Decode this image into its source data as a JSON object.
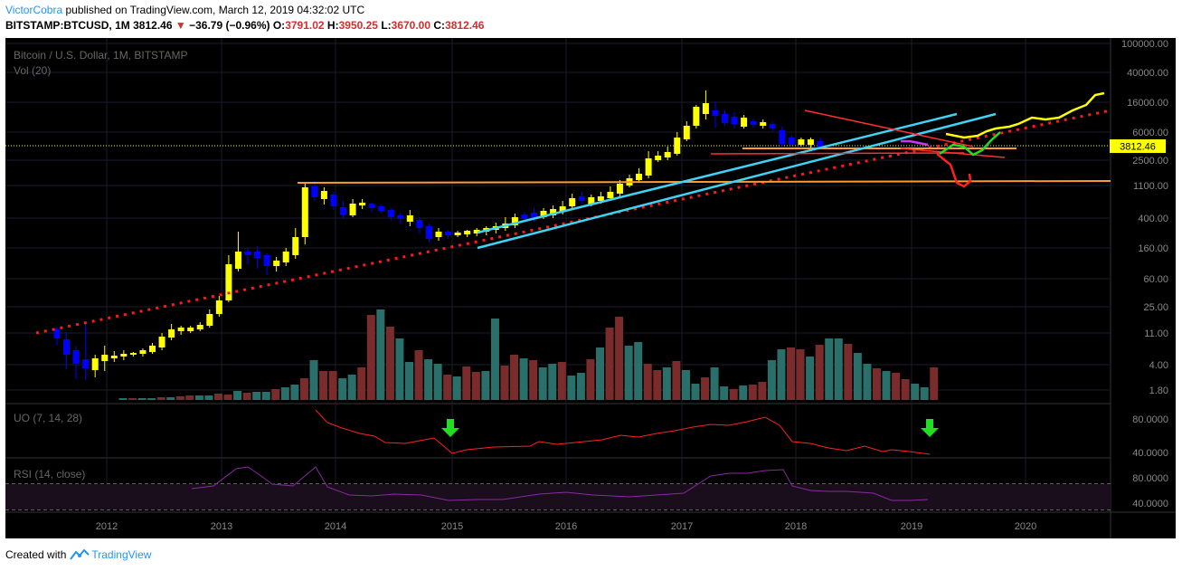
{
  "header": {
    "author": "VictorCobra",
    "published_text": "published on TradingView.com, March 12, 2019 04:32:02 UTC",
    "symbol": "BITSTAMP:BTCUSD, 1M",
    "last": "3812.46",
    "change": "−36.79 (−0.96%)",
    "o_label": "O:",
    "o_value": "3791.02",
    "h_label": "H:",
    "h_value": "3950.25",
    "l_label": "L:",
    "l_value": "3670.00",
    "c_label": "C:",
    "c_value": "3812.46"
  },
  "chart": {
    "pane_title": "Bitcoin / U.S. Dollar, 1M, BITSTAMP",
    "volume_label": "Vol (20)",
    "uo_label": "UO (7, 14, 28)",
    "rsi_label": "RSI (14, close)",
    "price_badge": "3812.46",
    "price_axis_labels": [
      "100000.00",
      "40000.00",
      "16000.00",
      "6000.00",
      "2500.00",
      "1100.00",
      "400.00",
      "160.00",
      "60.00",
      "25.00",
      "11.00",
      "4.00",
      "1.80"
    ],
    "uo_axis_labels": [
      "80.0000",
      "40.0000"
    ],
    "rsi_axis_labels": [
      "80.0000",
      "40.0000"
    ],
    "time_labels": [
      "2012",
      "2013",
      "2014",
      "2015",
      "2016",
      "2017",
      "2018",
      "2019",
      "2020"
    ],
    "colors": {
      "background": "#000000",
      "candle_up": "#ffff00",
      "candle_down": "#0000ff",
      "volume_up": "#2a6f6a",
      "volume_down": "#7a2c2c",
      "trendline_dotted": "#ff1a1a",
      "channel": "#3fd3f5",
      "resistance": "#ff9933",
      "uo_line": "#ff2020",
      "rsi_line": "#8a2aa0",
      "arrow": "#22dd22"
    }
  },
  "footer": {
    "created_with": "Created with",
    "brand": "TradingView"
  }
}
